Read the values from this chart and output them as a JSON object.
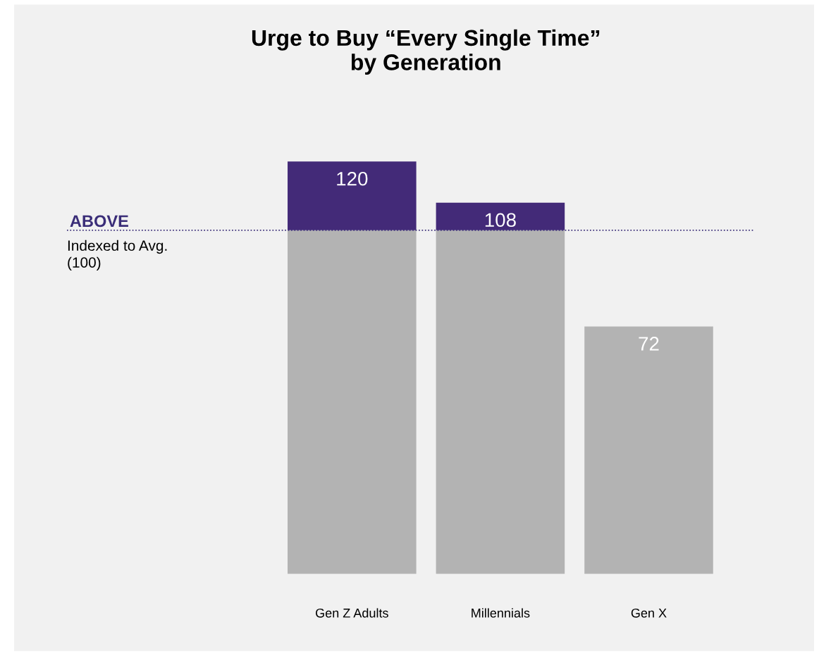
{
  "chart_data": {
    "type": "bar",
    "title": "Urge to Buy “Every Single Time”\nby Generation",
    "categories": [
      "Gen Z Adults",
      "Millennials",
      "Gen X"
    ],
    "stacked": true,
    "series": [
      {
        "color": "#b3b3b3",
        "values": [
          100,
          100,
          72
        ],
        "value_labels": [
          null,
          null,
          "72"
        ]
      },
      {
        "color": "#432a78",
        "values": [
          20,
          8,
          null
        ]
      }
    ],
    "totals": [
      "120",
      "108",
      null
    ],
    "tick_labels": "x",
    "legend": false,
    "ref_lines": [
      {
        "axis": "y",
        "value": 100,
        "label": "ABOVE",
        "color": "#3a2d78",
        "line_style": "dotted"
      }
    ],
    "annotations": [
      {
        "text": "Indexed to Avg.\n(100)",
        "y": 100
      }
    ]
  }
}
